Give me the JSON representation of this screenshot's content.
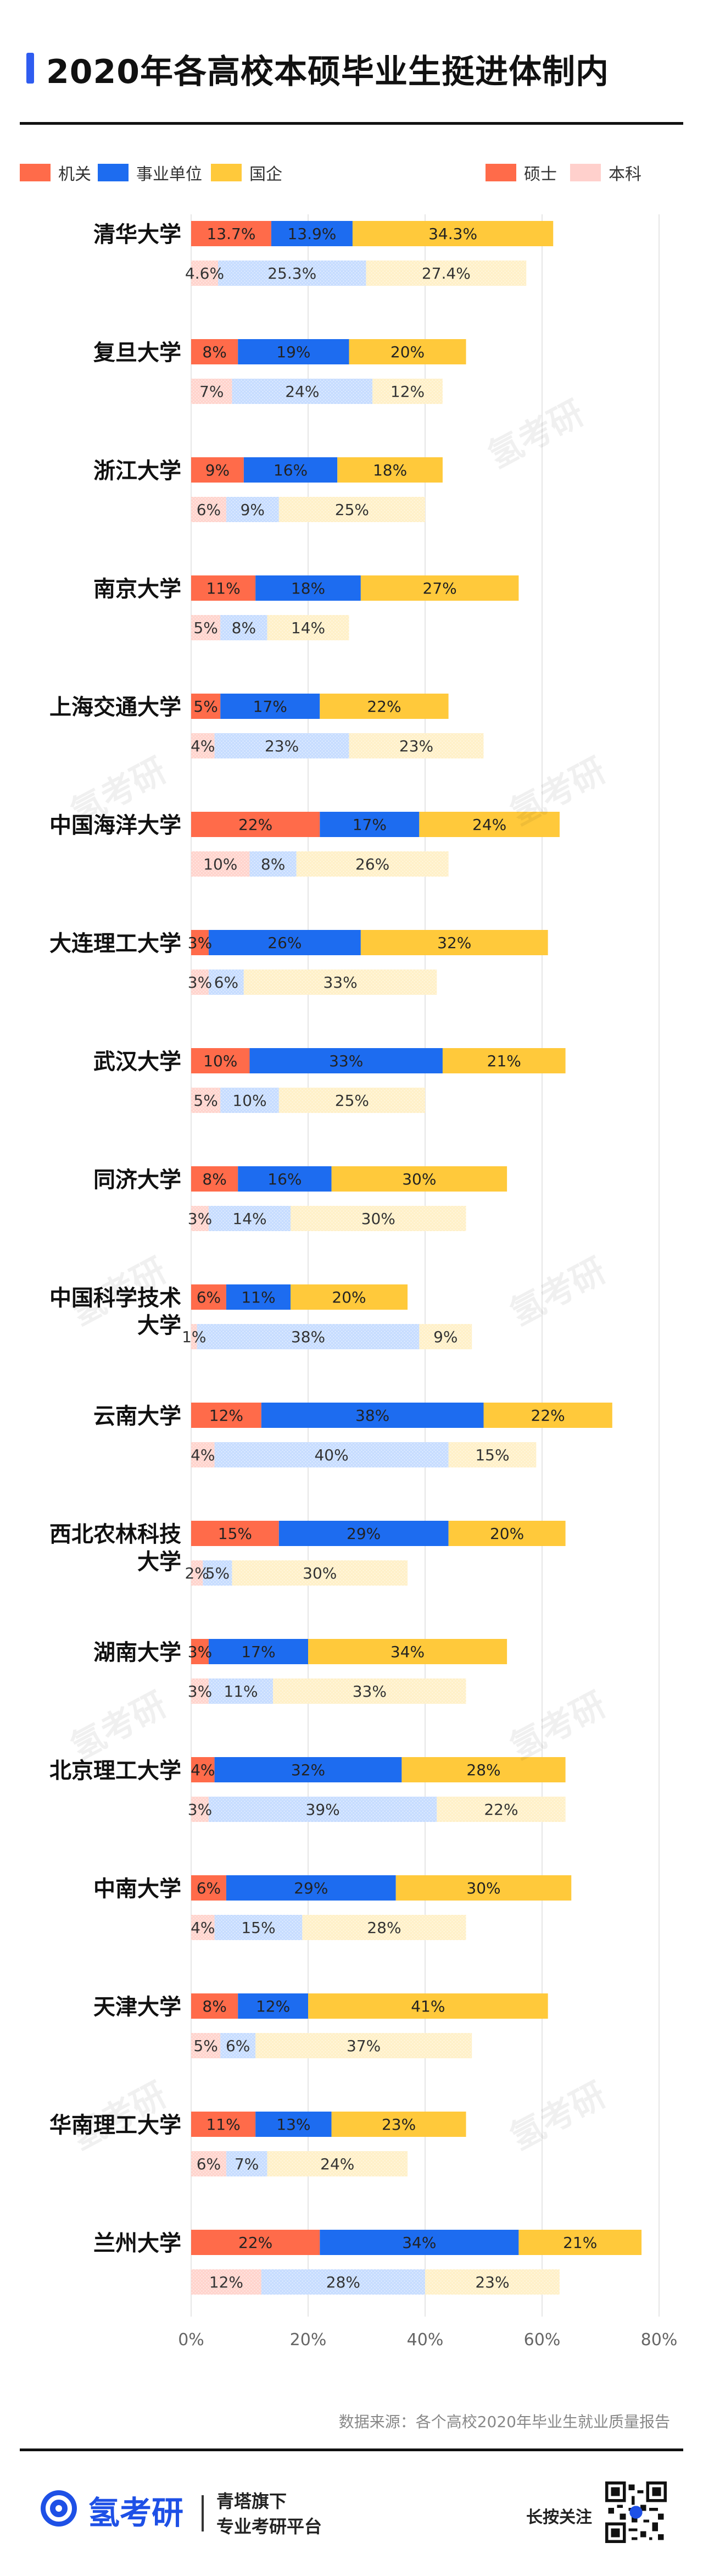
{
  "page": {
    "title": "2020年各高校本硕毕业生挺进体制内"
  },
  "legend": {
    "categories": [
      {
        "label": "机关",
        "color": "#ff6b4a"
      },
      {
        "label": "事业单位",
        "color": "#1d6cf0"
      },
      {
        "label": "国企",
        "color": "#ffc93b"
      }
    ],
    "degrees": [
      {
        "label": "硕士",
        "color": "#ff6b4a"
      },
      {
        "label": "本科",
        "color": "#ffd0cc"
      }
    ]
  },
  "chart_data": {
    "type": "bar",
    "orientation": "horizontal",
    "stacked": true,
    "xlim": [
      0,
      80
    ],
    "x_ticks": [
      "0%",
      "20%",
      "40%",
      "60%",
      "80%"
    ],
    "series": [
      {
        "name": "机关",
        "color": "#ff6b4a"
      },
      {
        "name": "事业单位",
        "color": "#1d6cf0"
      },
      {
        "name": "国企",
        "color": "#ffc93b"
      }
    ],
    "groups": [
      {
        "name": "硕士",
        "style": "solid"
      },
      {
        "name": "本科",
        "style": "light"
      }
    ],
    "categories": [
      {
        "label": [
          "清华大学"
        ],
        "master": [
          13.7,
          13.9,
          34.3
        ],
        "bachelor": [
          4.6,
          25.3,
          27.4
        ],
        "master_labels": [
          "13.7%",
          "13.9%",
          "34.3%"
        ],
        "bachelor_labels": [
          "4.6%",
          "25.3%",
          "27.4%"
        ]
      },
      {
        "label": [
          "复旦大学"
        ],
        "master": [
          8,
          19,
          20
        ],
        "bachelor": [
          7,
          24,
          12
        ],
        "master_labels": [
          "8%",
          "19%",
          "20%"
        ],
        "bachelor_labels": [
          "7%",
          "24%",
          "12%"
        ]
      },
      {
        "label": [
          "浙江大学"
        ],
        "master": [
          9,
          16,
          18
        ],
        "bachelor": [
          6,
          9,
          25
        ],
        "master_labels": [
          "9%",
          "16%",
          "18%"
        ],
        "bachelor_labels": [
          "6%",
          "9%",
          "25%"
        ]
      },
      {
        "label": [
          "南京大学"
        ],
        "master": [
          11,
          18,
          27
        ],
        "bachelor": [
          5,
          8,
          14
        ],
        "master_labels": [
          "11%",
          "18%",
          "27%"
        ],
        "bachelor_labels": [
          "5%",
          "8%",
          "14%"
        ]
      },
      {
        "label": [
          "上海交通大学"
        ],
        "master": [
          5,
          17,
          22
        ],
        "bachelor": [
          4,
          23,
          23
        ],
        "master_labels": [
          "5%",
          "17%",
          "22%"
        ],
        "bachelor_labels": [
          "4%",
          "23%",
          "23%"
        ]
      },
      {
        "label": [
          "中国海洋大学"
        ],
        "master": [
          22,
          17,
          24
        ],
        "bachelor": [
          10,
          8,
          26
        ],
        "master_labels": [
          "22%",
          "17%",
          "24%"
        ],
        "bachelor_labels": [
          "10%",
          "8%",
          "26%"
        ]
      },
      {
        "label": [
          "大连理工大学"
        ],
        "master": [
          3,
          26,
          32
        ],
        "bachelor": [
          3,
          6,
          33
        ],
        "master_labels": [
          "3%",
          "26%",
          "32%"
        ],
        "bachelor_labels": [
          "3%",
          "6%",
          "33%"
        ]
      },
      {
        "label": [
          "武汉大学"
        ],
        "master": [
          10,
          33,
          21
        ],
        "bachelor": [
          5,
          10,
          25
        ],
        "master_labels": [
          "10%",
          "33%",
          "21%"
        ],
        "bachelor_labels": [
          "5%",
          "10%",
          "25%"
        ]
      },
      {
        "label": [
          "同济大学"
        ],
        "master": [
          8,
          16,
          30
        ],
        "bachelor": [
          3,
          14,
          30
        ],
        "master_labels": [
          "8%",
          "16%",
          "30%"
        ],
        "bachelor_labels": [
          "3%",
          "14%",
          "30%"
        ]
      },
      {
        "label": [
          "中国科学技术",
          "大学"
        ],
        "master": [
          6,
          11,
          20
        ],
        "bachelor": [
          1,
          38,
          9
        ],
        "master_labels": [
          "6%",
          "11%",
          "20%"
        ],
        "bachelor_labels": [
          "1%",
          "38%",
          "9%"
        ]
      },
      {
        "label": [
          "云南大学"
        ],
        "master": [
          12,
          38,
          22
        ],
        "bachelor": [
          4,
          40,
          15
        ],
        "master_labels": [
          "12%",
          "38%",
          "22%"
        ],
        "bachelor_labels": [
          "4%",
          "40%",
          "15%"
        ]
      },
      {
        "label": [
          "西北农林科技",
          "大学"
        ],
        "master": [
          15,
          29,
          20
        ],
        "bachelor": [
          2,
          5,
          30
        ],
        "master_labels": [
          "15%",
          "29%",
          "20%"
        ],
        "bachelor_labels": [
          "2%",
          "5%",
          "30%"
        ]
      },
      {
        "label": [
          "湖南大学"
        ],
        "master": [
          3,
          17,
          34
        ],
        "bachelor": [
          3,
          11,
          33
        ],
        "master_labels": [
          "3%",
          "17%",
          "34%"
        ],
        "bachelor_labels": [
          "3%",
          "11%",
          "33%"
        ]
      },
      {
        "label": [
          "北京理工大学"
        ],
        "master": [
          4,
          32,
          28
        ],
        "bachelor": [
          3,
          39,
          22
        ],
        "master_labels": [
          "4%",
          "32%",
          "28%"
        ],
        "bachelor_labels": [
          "3%",
          "39%",
          "22%"
        ]
      },
      {
        "label": [
          "中南大学"
        ],
        "master": [
          6,
          29,
          30
        ],
        "bachelor": [
          4,
          15,
          28
        ],
        "master_labels": [
          "6%",
          "29%",
          "30%"
        ],
        "bachelor_labels": [
          "4%",
          "15%",
          "28%"
        ]
      },
      {
        "label": [
          "天津大学"
        ],
        "master": [
          8,
          12,
          41
        ],
        "bachelor": [
          5,
          6,
          37
        ],
        "master_labels": [
          "8%",
          "12%",
          "41%"
        ],
        "bachelor_labels": [
          "5%",
          "6%",
          "37%"
        ]
      },
      {
        "label": [
          "华南理工大学"
        ],
        "master": [
          11,
          13,
          23
        ],
        "bachelor": [
          6,
          7,
          24
        ],
        "master_labels": [
          "11%",
          "13%",
          "23%"
        ],
        "bachelor_labels": [
          "6%",
          "7%",
          "24%"
        ]
      },
      {
        "label": [
          "兰州大学"
        ],
        "master": [
          22,
          34,
          21
        ],
        "bachelor": [
          12,
          28,
          23
        ],
        "master_labels": [
          "22%",
          "34%",
          "21%"
        ],
        "bachelor_labels": [
          "12%",
          "28%",
          "23%"
        ]
      }
    ]
  },
  "source": "数据来源：各个高校2020年毕业生就业质量报告",
  "footer": {
    "brand": "氢考研",
    "tagline_1": "青塔旗下",
    "tagline_2": "专业考研平台",
    "follow": "长按关注"
  },
  "watermark": "氢考研"
}
